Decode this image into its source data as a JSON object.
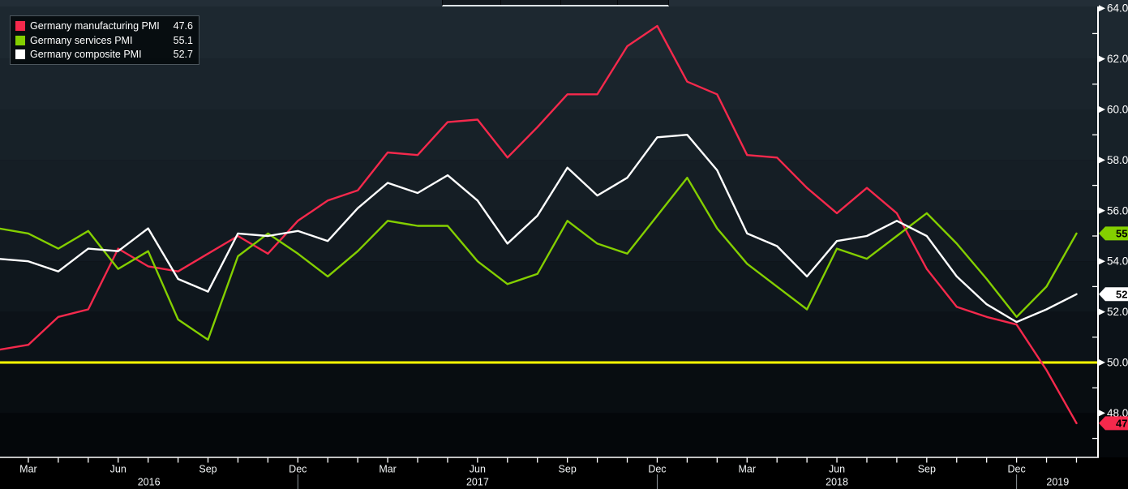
{
  "legend": {
    "items": [
      {
        "label": "Germany manufacturing PMI",
        "value": "47.6",
        "color": "#f5294c"
      },
      {
        "label": "Germany services PMI",
        "value": "55.1",
        "color": "#84cf00"
      },
      {
        "label": "Germany composite PMI",
        "value": "52.7",
        "color": "#ffffff"
      }
    ]
  },
  "colors": {
    "threshold_yellow": "#feff00",
    "axis_white": "#ffffff",
    "badge_text": "#000000",
    "year_divider": "#8f979c"
  },
  "chart_data": {
    "type": "line",
    "months": [
      "2016-02",
      "2016-03",
      "2016-04",
      "2016-05",
      "2016-06",
      "2016-07",
      "2016-08",
      "2016-09",
      "2016-10",
      "2016-11",
      "2016-12",
      "2017-01",
      "2017-02",
      "2017-03",
      "2017-04",
      "2017-05",
      "2017-06",
      "2017-07",
      "2017-08",
      "2017-09",
      "2017-10",
      "2017-11",
      "2017-12",
      "2018-01",
      "2018-02",
      "2018-03",
      "2018-04",
      "2018-05",
      "2018-06",
      "2018-07",
      "2018-08",
      "2018-09",
      "2018-10",
      "2018-11",
      "2018-12",
      "2019-01",
      "2019-02"
    ],
    "series": [
      {
        "name": "Germany manufacturing PMI",
        "color": "#f5294c",
        "last_value": 47.6,
        "values": [
          50.5,
          50.7,
          51.8,
          52.1,
          54.5,
          53.8,
          53.6,
          54.3,
          55.0,
          54.3,
          55.6,
          56.4,
          56.8,
          58.3,
          58.2,
          59.5,
          59.6,
          58.1,
          59.3,
          60.6,
          60.6,
          62.5,
          63.3,
          61.1,
          60.6,
          58.2,
          58.1,
          56.9,
          55.9,
          56.9,
          55.9,
          53.7,
          52.2,
          51.8,
          51.5,
          49.7,
          47.6
        ]
      },
      {
        "name": "Germany services PMI",
        "color": "#84cf00",
        "last_value": 55.1,
        "values": [
          55.3,
          55.1,
          54.5,
          55.2,
          53.7,
          54.4,
          51.7,
          50.9,
          54.2,
          55.1,
          54.3,
          53.4,
          54.4,
          55.6,
          55.4,
          55.4,
          54.0,
          53.1,
          53.5,
          55.6,
          54.7,
          54.3,
          55.8,
          57.3,
          55.3,
          53.9,
          53.0,
          52.1,
          54.5,
          54.1,
          55.0,
          55.9,
          54.7,
          53.3,
          51.8,
          53.0,
          55.1
        ]
      },
      {
        "name": "Germany composite PMI",
        "color": "#ffffff",
        "last_value": 52.7,
        "values": [
          54.1,
          54.0,
          53.6,
          54.5,
          54.4,
          55.3,
          53.3,
          52.8,
          55.1,
          55.0,
          55.2,
          54.8,
          56.1,
          57.1,
          56.7,
          57.4,
          56.4,
          54.7,
          55.8,
          57.7,
          56.6,
          57.3,
          58.9,
          59.0,
          57.6,
          55.1,
          54.6,
          53.4,
          54.8,
          55.0,
          55.6,
          55.0,
          53.4,
          52.3,
          51.6,
          52.1,
          52.7
        ]
      }
    ],
    "threshold": {
      "value": 50.0
    },
    "y_axis": {
      "major_ticks": [
        48,
        50,
        52,
        54,
        56,
        58,
        60,
        62,
        64
      ],
      "minor_ticks": [
        47,
        49,
        51,
        53,
        55,
        57,
        59,
        61,
        63
      ]
    },
    "x_axis": {
      "quarter_labels": [
        {
          "index": 1,
          "label": "Mar"
        },
        {
          "index": 4,
          "label": "Jun"
        },
        {
          "index": 7,
          "label": "Sep"
        },
        {
          "index": 10,
          "label": "Dec"
        },
        {
          "index": 13,
          "label": "Mar"
        },
        {
          "index": 16,
          "label": "Jun"
        },
        {
          "index": 19,
          "label": "Sep"
        },
        {
          "index": 22,
          "label": "Dec"
        },
        {
          "index": 25,
          "label": "Mar"
        },
        {
          "index": 28,
          "label": "Jun"
        },
        {
          "index": 31,
          "label": "Sep"
        },
        {
          "index": 34,
          "label": "Dec"
        }
      ],
      "years": [
        {
          "label": "2016",
          "from": 0,
          "to": 10
        },
        {
          "label": "2017",
          "from": 10,
          "to": 22
        },
        {
          "label": "2018",
          "from": 22,
          "to": 34
        },
        {
          "label": "2019",
          "from": 34,
          "to": 40
        }
      ],
      "year_dividers": [
        10,
        22,
        34
      ]
    }
  }
}
